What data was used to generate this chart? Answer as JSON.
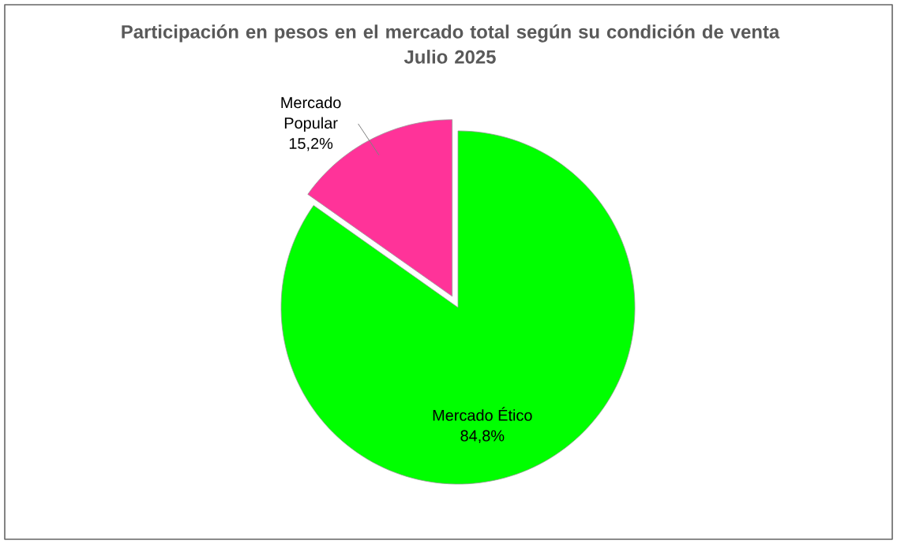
{
  "chart_data": {
    "type": "pie",
    "title": "Participación en pesos en el mercado total según su condición de venta",
    "subtitle": "Julio 2025",
    "categories": [
      "Mercado Popular",
      "Mercado Ético"
    ],
    "values": [
      15.2,
      84.8
    ],
    "value_labels": [
      "15,2%",
      "84,8%"
    ],
    "colors": [
      "#ff3399",
      "#00ff00"
    ]
  }
}
